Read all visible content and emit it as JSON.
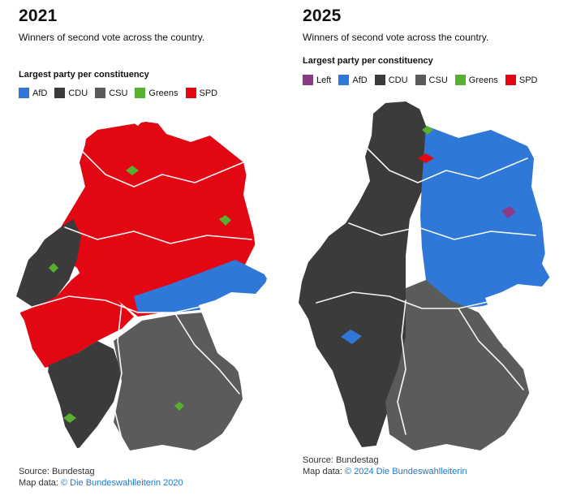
{
  "colors": {
    "afd": "#2f78d8",
    "cdu": "#3b3b3b",
    "csu": "#5b5b5b",
    "greens": "#57b02f",
    "spd": "#e30613",
    "left": "#8b3b86",
    "border": "#ffffff",
    "link": "#1f78c8"
  },
  "panels": [
    {
      "year": "2021",
      "subtitle": "Winners of second vote across the country.",
      "legend_title": "Largest party per constituency",
      "legend": [
        {
          "label": "AfD",
          "color": "#2f78d8"
        },
        {
          "label": "CDU",
          "color": "#3b3b3b"
        },
        {
          "label": "CSU",
          "color": "#5b5b5b"
        },
        {
          "label": "Greens",
          "color": "#57b02f"
        },
        {
          "label": "SPD",
          "color": "#e30613"
        }
      ],
      "source_line": "Source: Bundestag",
      "map_data_prefix": "Map data: ",
      "map_data_link": "© Die Bundeswahlleiterin 2020"
    },
    {
      "year": "2025",
      "subtitle": "Winners of second vote across the country.",
      "legend_title": "Largest party per constituency",
      "legend": [
        {
          "label": "Left",
          "color": "#8b3b86"
        },
        {
          "label": "AfD",
          "color": "#2f78d8"
        },
        {
          "label": "CDU",
          "color": "#3b3b3b"
        },
        {
          "label": "CSU",
          "color": "#5b5b5b"
        },
        {
          "label": "Greens",
          "color": "#57b02f"
        },
        {
          "label": "SPD",
          "color": "#e30613"
        }
      ],
      "source_line": "Source: Bundestag",
      "map_data_prefix": "Map data: ",
      "map_data_link": "© 2024 Die Bundeswahlleiterin"
    }
  ]
}
